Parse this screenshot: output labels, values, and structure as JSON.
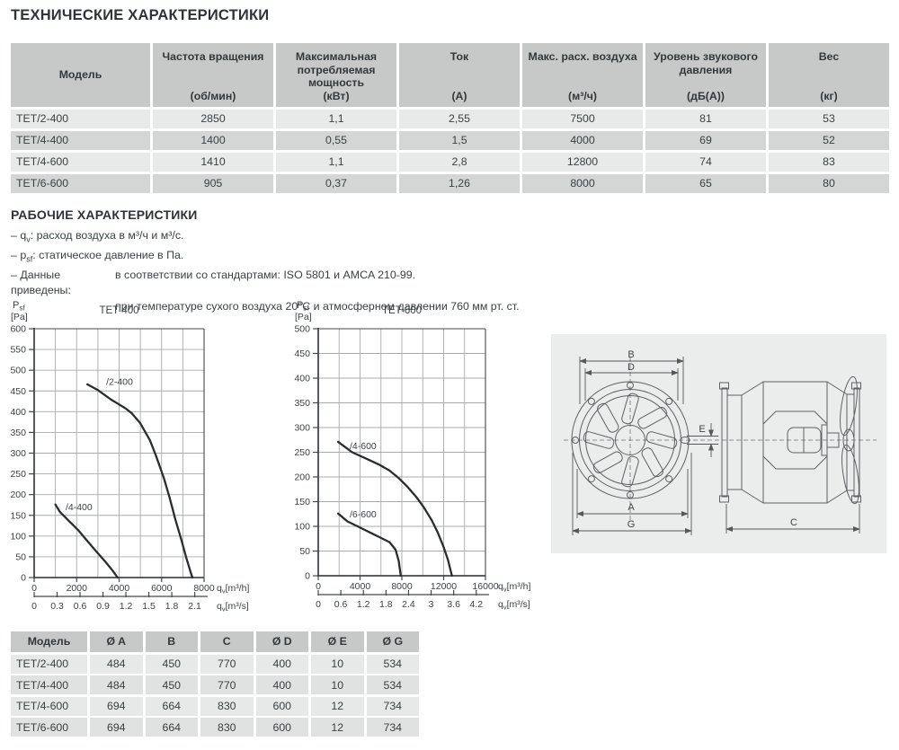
{
  "page": {
    "title1": "ТЕХНИЧЕСКИЕ ХАРАКТЕРИСТИКИ",
    "title2": "РАБОЧИЕ ХАРАКТЕРИСТИКИ"
  },
  "spec_table": {
    "columns": [
      {
        "name": "Модель",
        "unit": ""
      },
      {
        "name": "Частота вращения",
        "unit": "(об/мин)"
      },
      {
        "name": "Максимальная потребляемая мощность",
        "unit": "(кВт)"
      },
      {
        "name": "Ток",
        "unit": "(А)"
      },
      {
        "name": "Макс. расх. воздуха",
        "unit": "(м³/ч)"
      },
      {
        "name": "Уровень звукового давления",
        "unit": "(дБ(А))"
      },
      {
        "name": "Вес",
        "unit": "(кг)"
      }
    ],
    "rows": [
      [
        "ТЕТ/2-400",
        "2850",
        "1,1",
        "2,55",
        "7500",
        "81",
        "53"
      ],
      [
        "ТЕТ/4-400",
        "1400",
        "0,55",
        "1,5",
        "4000",
        "69",
        "52"
      ],
      [
        "ТЕТ/4-600",
        "1410",
        "1,1",
        "2,8",
        "12800",
        "74",
        "83"
      ],
      [
        "ТЕТ/6-600",
        "905",
        "0,37",
        "1,26",
        "8000",
        "65",
        "80"
      ]
    ]
  },
  "notes": {
    "item1_pre": "– q",
    "item1_sub": "v",
    "item1_post": ": расход воздуха в м³/ч и м³/с.",
    "item2_pre": "– p",
    "item2_sub": "sf",
    "item2_post": ": статическое давление в Па.",
    "item3_label": "– Данные приведены:",
    "item3_text": "в соответствии со стандартами: ISO 5801 и AMCA 210-99.",
    "item4_text": "при температуре сухого воздуха 20°C и атмосферном давлении 760 мм рт. ст."
  },
  "chart_data": [
    {
      "type": "line",
      "title": "TET-400",
      "ylabel": {
        "main": "P",
        "sub": "sf",
        "unit": "[Pa]"
      },
      "xlabel_h": {
        "main": "q",
        "sub": "v",
        "unit": "[m³/h]"
      },
      "xlabel_s": {
        "main": "q",
        "sub": "v",
        "unit": "[m³/s]"
      },
      "ylim": [
        0,
        600
      ],
      "y_step": 50,
      "xlim": [
        0,
        8000
      ],
      "x_grid_step": 1000,
      "x_ticks": [
        0,
        2000,
        4000,
        6000,
        8000
      ],
      "x2_ticks": [
        0,
        0.3,
        0.6,
        0.9,
        1.2,
        1.5,
        1.8,
        2.1
      ],
      "x2_scale": 3600,
      "grid": true,
      "series": [
        {
          "name": "/2-400",
          "label_at": [
            3390,
            465
          ],
          "points": [
            [
              2500,
              466
            ],
            [
              3000,
              452
            ],
            [
              3600,
              430
            ],
            [
              4300,
              408
            ],
            [
              4600,
              396
            ],
            [
              5000,
              372
            ],
            [
              5450,
              331
            ],
            [
              5750,
              292
            ],
            [
              6100,
              241
            ],
            [
              6370,
              194
            ],
            [
              6650,
              140
            ],
            [
              6940,
              89
            ],
            [
              7150,
              50
            ],
            [
              7360,
              14
            ],
            [
              7450,
              0
            ]
          ]
        },
        {
          "name": "/4-400",
          "label_at": [
            1480,
            162
          ],
          "points": [
            [
              1000,
              176
            ],
            [
              1220,
              158
            ],
            [
              1570,
              140
            ],
            [
              2060,
              115
            ],
            [
              2490,
              89
            ],
            [
              2910,
              64
            ],
            [
              3340,
              39
            ],
            [
              3690,
              17
            ],
            [
              3930,
              0
            ]
          ]
        }
      ]
    },
    {
      "type": "line",
      "title": "TET-600",
      "ylabel": {
        "main": "P",
        "sub": "sf",
        "unit": "[Pa]"
      },
      "xlabel_h": {
        "main": "q",
        "sub": "v",
        "unit": "[m³/h]"
      },
      "xlabel_s": {
        "main": "q",
        "sub": "v",
        "unit": "[m³/s]"
      },
      "ylim": [
        0,
        500
      ],
      "y_step": 50,
      "xlim": [
        0,
        16000
      ],
      "x_grid_step": 2000,
      "x_ticks": [
        0,
        4000,
        8000,
        12000,
        16000
      ],
      "x2_ticks": [
        0,
        0.6,
        1.2,
        1.8,
        2.4,
        3,
        3.6,
        4.2
      ],
      "x2_scale": 3600,
      "grid": true,
      "series": [
        {
          "name": "/4-600",
          "label_at": [
            3010,
            256
          ],
          "points": [
            [
              1900,
              271
            ],
            [
              3240,
              250
            ],
            [
              4820,
              235
            ],
            [
              5820,
              225
            ],
            [
              6820,
              213
            ],
            [
              7680,
              198
            ],
            [
              8540,
              180
            ],
            [
              9400,
              159
            ],
            [
              10120,
              138
            ],
            [
              10840,
              113
            ],
            [
              11410,
              89
            ],
            [
              11980,
              59
            ],
            [
              12410,
              32
            ],
            [
              12790,
              0
            ]
          ]
        },
        {
          "name": "/6-600",
          "label_at": [
            3010,
            118
          ],
          "points": [
            [
              1900,
              126
            ],
            [
              2800,
              110
            ],
            [
              3960,
              98
            ],
            [
              5100,
              86
            ],
            [
              5960,
              77
            ],
            [
              6820,
              68
            ],
            [
              7400,
              53
            ],
            [
              7700,
              30
            ],
            [
              7900,
              0
            ]
          ]
        }
      ]
    }
  ],
  "diagram": {
    "labels": {
      "A": "A",
      "B": "B",
      "C": "C",
      "D": "D",
      "E": "E",
      "G": "G"
    }
  },
  "dim_table": {
    "columns": [
      "Модель",
      "Ø A",
      "B",
      "C",
      "Ø D",
      "Ø E",
      "Ø G"
    ],
    "rows": [
      [
        "ТЕТ/2-400",
        "484",
        "450",
        "770",
        "400",
        "10",
        "534"
      ],
      [
        "ТЕТ/4-400",
        "484",
        "450",
        "770",
        "400",
        "10",
        "534"
      ],
      [
        "ТЕТ/4-600",
        "694",
        "664",
        "830",
        "600",
        "12",
        "734"
      ],
      [
        "ТЕТ/6-600",
        "694",
        "664",
        "830",
        "600",
        "12",
        "734"
      ]
    ]
  },
  "colors": {
    "header_bg": "#c6c9c8",
    "row_light": "#e8eae9",
    "row_dark": "#d3d6d5",
    "text": "#3c4143",
    "grid": "#a8abaa",
    "axis": "#44484a",
    "curve": "#2a2d2f",
    "panel_bg": "#ebedec",
    "drawing_line": "#5d6163"
  }
}
